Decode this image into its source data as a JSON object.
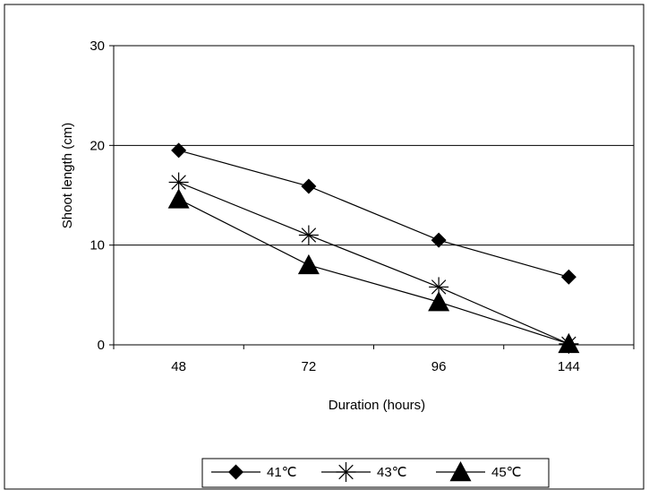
{
  "chart_data": {
    "type": "line",
    "title": "",
    "xlabel": "Duration (hours)",
    "ylabel": "Shoot length (cm)",
    "categories": [
      "48",
      "72",
      "96",
      "144"
    ],
    "ylim": [
      0,
      30
    ],
    "yticks": [
      "0",
      "10",
      "20",
      "30"
    ],
    "grid": "horizontal",
    "legend_position": "bottom",
    "series": [
      {
        "name": "41℃",
        "marker": "diamond",
        "values": [
          19.5,
          15.9,
          10.5,
          6.8
        ]
      },
      {
        "name": "43℃",
        "marker": "asterisk",
        "values": [
          16.3,
          11.0,
          5.8,
          0.1
        ]
      },
      {
        "name": "45℃",
        "marker": "triangle",
        "values": [
          14.6,
          8.0,
          4.3,
          0.1
        ]
      }
    ],
    "colors": {
      "line": "#000000",
      "background": "#ffffff"
    }
  }
}
